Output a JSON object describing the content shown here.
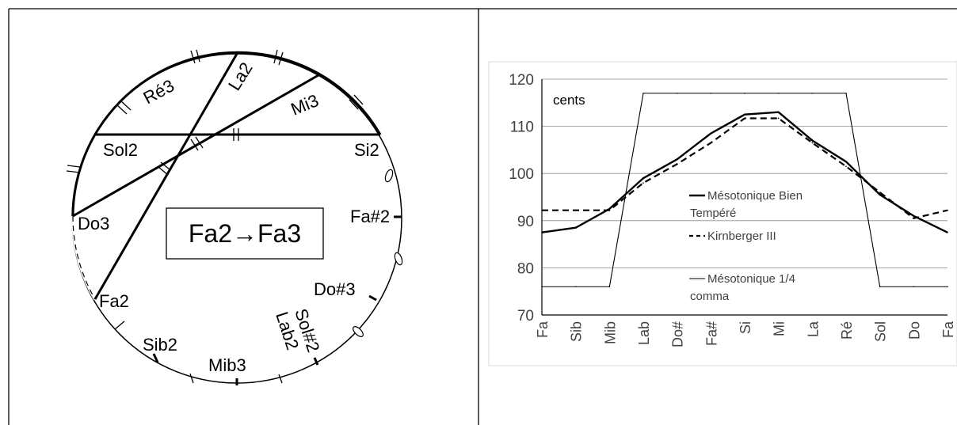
{
  "circle": {
    "box_label": "Fa2→Fa3",
    "notes": [
      {
        "text": "Ré3",
        "rot": -28
      },
      {
        "text": "La2",
        "rot": -58
      },
      {
        "text": "Mi3",
        "rot": -22
      },
      {
        "text": "Sol2",
        "rot": 0
      },
      {
        "text": "Si2",
        "rot": 0
      },
      {
        "text": "Do3",
        "rot": 0
      },
      {
        "text": "Fa#2",
        "rot": 0
      },
      {
        "text": "Fa2",
        "rot": 0
      },
      {
        "text": "Do#3",
        "rot": 0
      },
      {
        "text": "Sol#2",
        "rot": 72
      },
      {
        "text": "Lab2",
        "rot": 72
      },
      {
        "text": "Sib2",
        "rot": 0
      },
      {
        "text": "Mib3",
        "rot": 0
      }
    ]
  },
  "chart_data": {
    "type": "line",
    "title": "",
    "annotation": "cents",
    "xlabel": "",
    "ylabel": "",
    "categories": [
      "Fa",
      "Sib",
      "Mib",
      "Lab",
      "Do#",
      "Fa#",
      "Si",
      "Mi",
      "La",
      "Ré",
      "Sol",
      "Do",
      "Fa"
    ],
    "ylim": [
      70,
      120
    ],
    "yticks": [
      70,
      80,
      90,
      100,
      110,
      120
    ],
    "grid": true,
    "legend_position": "center-right",
    "series": [
      {
        "name": "Mésotonique Bien Tempéré",
        "style": "solid-thick",
        "color": "#000000",
        "values": [
          87.5,
          88.5,
          92.5,
          99,
          103,
          108.5,
          112.5,
          113,
          107,
          102.5,
          95.5,
          91,
          87.5
        ]
      },
      {
        "name": "Kirnberger III",
        "style": "dashed",
        "color": "#000000",
        "values": [
          92.2,
          92.2,
          92.2,
          98,
          102,
          106.5,
          111.7,
          111.7,
          106.5,
          101.5,
          96,
          90.5,
          92.2
        ]
      },
      {
        "name": "Mésotonique 1/4 comma",
        "style": "solid-thin",
        "color": "#000000",
        "values": [
          76,
          76,
          76,
          117,
          117,
          117,
          117,
          117,
          117,
          117,
          76,
          76,
          76
        ]
      }
    ]
  }
}
